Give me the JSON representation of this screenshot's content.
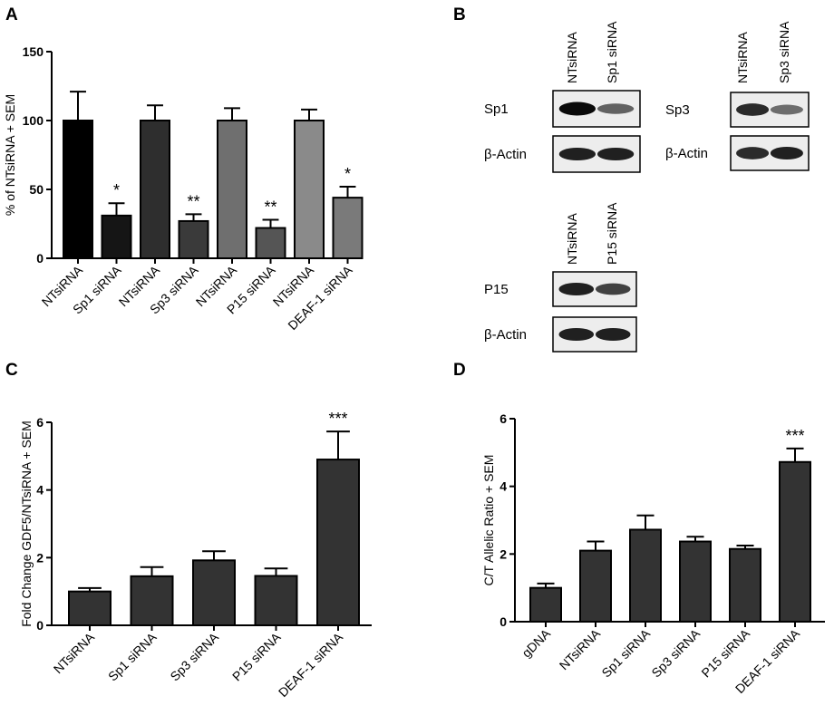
{
  "panels": {
    "A": "A",
    "B": "B",
    "C": "C",
    "D": "D"
  },
  "chart_data": [
    {
      "panel": "A",
      "type": "bar",
      "ylabel": "% of NTsiRNA +  SEM",
      "xlabel": "",
      "ylim": [
        0,
        150
      ],
      "yticks": [
        0,
        50,
        100,
        150
      ],
      "categories": [
        "NTsiRNA",
        "Sp1 siRNA",
        "NTsiRNA",
        "Sp3 siRNA",
        "NTsiRNA",
        "P15 siRNA",
        "NTsiRNA",
        "DEAF-1 siRNA"
      ],
      "values": [
        100,
        31,
        100,
        27,
        100,
        22,
        100,
        44
      ],
      "errors": [
        21,
        9,
        11,
        5,
        9,
        6,
        8,
        8
      ],
      "colors": [
        "#000000",
        "#151515",
        "#2e2e2e",
        "#3a3a3a",
        "#6f6f6f",
        "#555555",
        "#8a8a8a",
        "#7a7a7a"
      ],
      "significance": [
        "",
        "*",
        "",
        "**",
        "",
        "**",
        "",
        "*"
      ]
    },
    {
      "panel": "C",
      "type": "bar",
      "ylabel": "Fold Change GDF5/NTsiRNA + SEM",
      "xlabel": "",
      "ylim": [
        0,
        6
      ],
      "yticks": [
        0,
        2,
        4,
        6
      ],
      "categories": [
        "NTsiRNA",
        "Sp1 siRNA",
        "Sp3 siRNA",
        "P15 siRNA",
        "DEAF-1 siRNA"
      ],
      "values": [
        1.0,
        1.45,
        1.92,
        1.46,
        4.9
      ],
      "errors": [
        0.1,
        0.27,
        0.27,
        0.22,
        0.83
      ],
      "colors": [
        "#333333",
        "#333333",
        "#333333",
        "#333333",
        "#333333"
      ],
      "significance": [
        "",
        "",
        "",
        "",
        "***"
      ]
    },
    {
      "panel": "D",
      "type": "bar",
      "ylabel": "C/T Allelic Ratio + SEM",
      "xlabel": "",
      "ylim": [
        0,
        6
      ],
      "yticks": [
        0,
        2,
        4,
        6
      ],
      "categories": [
        "gDNA",
        "NTsiRNA",
        "Sp1 siRNA",
        "Sp3 siRNA",
        "P15 siRNA",
        "DEAF-1 siRNA"
      ],
      "values": [
        1.0,
        2.1,
        2.72,
        2.37,
        2.15,
        4.72
      ],
      "errors": [
        0.13,
        0.27,
        0.42,
        0.14,
        0.1,
        0.4
      ],
      "colors": [
        "#333333",
        "#333333",
        "#333333",
        "#333333",
        "#333333",
        "#333333"
      ],
      "significance": [
        "",
        "",
        "",
        "",
        "",
        "***"
      ]
    }
  ],
  "blots": [
    {
      "lanes": [
        "NTsiRNA",
        "Sp1 siRNA"
      ],
      "rows": [
        {
          "label": "Sp1",
          "intensity": [
            1.0,
            0.6
          ]
        },
        {
          "label": "β-Actin",
          "intensity": [
            0.9,
            0.9
          ]
        }
      ]
    },
    {
      "lanes": [
        "NTsiRNA",
        "Sp3 siRNA"
      ],
      "rows": [
        {
          "label": "Sp3",
          "intensity": [
            0.85,
            0.55
          ]
        },
        {
          "label": "β-Actin",
          "intensity": [
            0.85,
            0.9
          ]
        }
      ]
    },
    {
      "lanes": [
        "NTsiRNA",
        "P15 siRNA"
      ],
      "rows": [
        {
          "label": "P15",
          "intensity": [
            0.9,
            0.75
          ]
        },
        {
          "label": "β-Actin",
          "intensity": [
            0.9,
            0.9
          ]
        }
      ]
    }
  ]
}
